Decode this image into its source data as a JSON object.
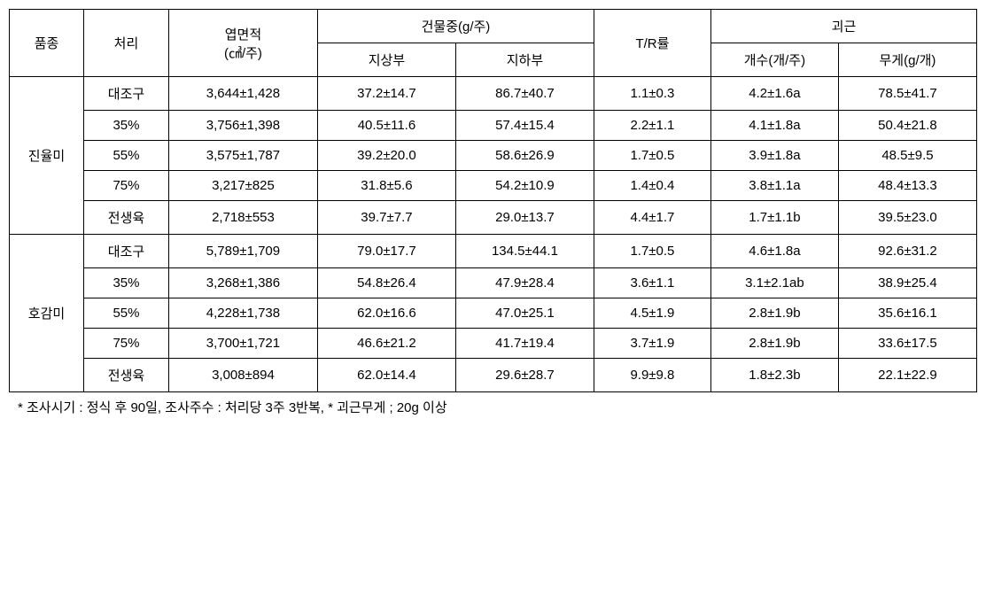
{
  "headers": {
    "variety": "품종",
    "treatment": "처리",
    "leaf_area": "엽면적",
    "leaf_area_unit": "(㎤/주)",
    "dry_weight": "건물중(g/주)",
    "dry_above": "지상부",
    "dry_below": "지하부",
    "tr_ratio": "T/R률",
    "tuber": "괴근",
    "tuber_count": "개수(개/주)",
    "tuber_weight": "무게(g/개)"
  },
  "varieties": [
    {
      "name": "진율미",
      "rows": [
        {
          "treatment": "대조구",
          "leaf": "3,644±1,428",
          "above": "37.2±14.7",
          "below": "86.7±40.7",
          "tr": "1.1±0.3",
          "count": "4.2±1.6a",
          "weight": "78.5±41.7"
        },
        {
          "treatment": "35%",
          "leaf": "3,756±1,398",
          "above": "40.5±11.6",
          "below": "57.4±15.4",
          "tr": "2.2±1.1",
          "count": "4.1±1.8a",
          "weight": "50.4±21.8"
        },
        {
          "treatment": "55%",
          "leaf": "3,575±1,787",
          "above": "39.2±20.0",
          "below": "58.6±26.9",
          "tr": "1.7±0.5",
          "count": "3.9±1.8a",
          "weight": "48.5±9.5"
        },
        {
          "treatment": "75%",
          "leaf": "3,217±825",
          "above": "31.8±5.6",
          "below": "54.2±10.9",
          "tr": "1.4±0.4",
          "count": "3.8±1.1a",
          "weight": "48.4±13.3"
        },
        {
          "treatment": "전생육",
          "leaf": "2,718±553",
          "above": "39.7±7.7",
          "below": "29.0±13.7",
          "tr": "4.4±1.7",
          "count": "1.7±1.1b",
          "weight": "39.5±23.0"
        }
      ]
    },
    {
      "name": "호감미",
      "rows": [
        {
          "treatment": "대조구",
          "leaf": "5,789±1,709",
          "above": "79.0±17.7",
          "below": "134.5±44.1",
          "tr": "1.7±0.5",
          "count": "4.6±1.8a",
          "weight": "92.6±31.2"
        },
        {
          "treatment": "35%",
          "leaf": "3,268±1,386",
          "above": "54.8±26.4",
          "below": "47.9±28.4",
          "tr": "3.6±1.1",
          "count": "3.1±2.1ab",
          "weight": "38.9±25.4"
        },
        {
          "treatment": "55%",
          "leaf": "4,228±1,738",
          "above": "62.0±16.6",
          "below": "47.0±25.1",
          "tr": "4.5±1.9",
          "count": "2.8±1.9b",
          "weight": "35.6±16.1"
        },
        {
          "treatment": "75%",
          "leaf": "3,700±1,721",
          "above": "46.6±21.2",
          "below": "41.7±19.4",
          "tr": "3.7±1.9",
          "count": "2.8±1.9b",
          "weight": "33.6±17.5"
        },
        {
          "treatment": "전생육",
          "leaf": "3,008±894",
          "above": "62.0±14.4",
          "below": "29.6±28.7",
          "tr": "9.9±9.8",
          "count": "1.8±2.3b",
          "weight": "22.1±22.9"
        }
      ]
    }
  ],
  "footnote": "* 조사시기 : 정식 후 90일, 조사주수 : 처리당 3주 3반복, * 괴근무게 ; 20g 이상"
}
